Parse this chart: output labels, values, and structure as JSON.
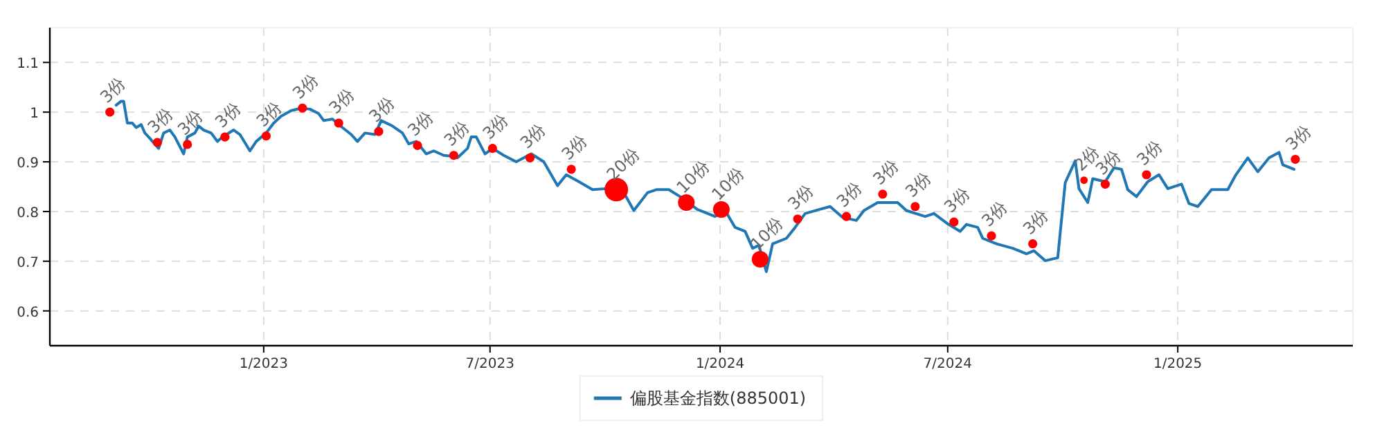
{
  "chart_data": {
    "type": "line",
    "xlim": [
      "2022-07-14",
      "2025-05-21"
    ],
    "ylim": [
      0.53,
      1.17
    ],
    "xticks": [
      {
        "value": "2023-01-01",
        "label": "1/2023"
      },
      {
        "value": "2023-07-01",
        "label": "7/2023"
      },
      {
        "value": "2024-01-01",
        "label": "1/2024"
      },
      {
        "value": "2024-07-01",
        "label": "7/2024"
      },
      {
        "value": "2025-01-01",
        "label": "1/2025"
      }
    ],
    "yticks": [
      0.6,
      0.7,
      0.8,
      0.9,
      1,
      1.1
    ],
    "grid": true,
    "legend": "bottom",
    "series": [
      {
        "name": "偏股基金指数(885001)",
        "color": "#1f77b4",
        "x": [
          "2022-09-05",
          "2022-09-09",
          "2022-09-11",
          "2022-09-14",
          "2022-09-18",
          "2022-09-21",
          "2022-09-25",
          "2022-09-28",
          "2022-10-01",
          "2022-10-09",
          "2022-10-13",
          "2022-10-18",
          "2022-10-22",
          "2022-10-29",
          "2022-11-01",
          "2022-11-07",
          "2022-11-10",
          "2022-11-14",
          "2022-11-20",
          "2022-11-25",
          "2022-11-29",
          "2022-12-08",
          "2022-12-13",
          "2022-12-21",
          "2022-12-26",
          "2023-01-03",
          "2023-01-09",
          "2023-01-15",
          "2023-01-23",
          "2023-01-31",
          "2023-02-07",
          "2023-02-14",
          "2023-02-18",
          "2023-02-25",
          "2023-03-05",
          "2023-03-12",
          "2023-03-17",
          "2023-03-23",
          "2023-03-31",
          "2023-04-05",
          "2023-04-14",
          "2023-04-22",
          "2023-04-27",
          "2023-05-03",
          "2023-05-11",
          "2023-05-17",
          "2023-05-25",
          "2023-06-02",
          "2023-06-05",
          "2023-06-13",
          "2023-06-16",
          "2023-06-20",
          "2023-06-27",
          "2023-07-03",
          "2023-07-12",
          "2023-07-22",
          "2023-08-03",
          "2023-08-13",
          "2023-08-24",
          "2023-08-31",
          "2023-09-10",
          "2023-09-21",
          "2023-10-02",
          "2023-10-16",
          "2023-10-24",
          "2023-11-04",
          "2023-11-11",
          "2023-11-21",
          "2023-11-30",
          "2023-12-14",
          "2023-12-28",
          "2024-01-05",
          "2024-01-13",
          "2024-01-21",
          "2024-01-27",
          "2024-02-01",
          "2024-02-07",
          "2024-02-12",
          "2024-02-23",
          "2024-03-01",
          "2024-03-09",
          "2024-03-20",
          "2024-03-29",
          "2024-04-08",
          "2024-04-19",
          "2024-04-25",
          "2024-05-06",
          "2024-05-22",
          "2024-05-29",
          "2024-06-13",
          "2024-06-20",
          "2024-06-30",
          "2024-07-11",
          "2024-07-16",
          "2024-07-25",
          "2024-07-29",
          "2024-08-09",
          "2024-08-22",
          "2024-09-02",
          "2024-09-08",
          "2024-09-17",
          "2024-09-27",
          "2024-10-03",
          "2024-10-11",
          "2024-10-14",
          "2024-10-21",
          "2024-10-25",
          "2024-11-04",
          "2024-11-11",
          "2024-11-17",
          "2024-11-22",
          "2024-11-29",
          "2024-12-08",
          "2024-12-17",
          "2024-12-24",
          "2025-01-04",
          "2025-01-10",
          "2025-01-17",
          "2025-01-28",
          "2025-02-10",
          "2025-02-16",
          "2025-02-26",
          "2025-03-06",
          "2025-03-15",
          "2025-03-23",
          "2025-03-26",
          "2025-04-04"
        ],
        "values": [
          1.014,
          1.022,
          1.022,
          0.978,
          0.978,
          0.969,
          0.975,
          0.958,
          0.95,
          0.927,
          0.958,
          0.964,
          0.95,
          0.916,
          0.95,
          0.958,
          0.972,
          0.964,
          0.958,
          0.941,
          0.95,
          0.964,
          0.955,
          0.922,
          0.941,
          0.958,
          0.978,
          0.992,
          1.003,
          1.008,
          1.006,
          0.997,
          0.983,
          0.986,
          0.969,
          0.955,
          0.941,
          0.958,
          0.955,
          0.983,
          0.972,
          0.958,
          0.936,
          0.941,
          0.916,
          0.922,
          0.913,
          0.911,
          0.908,
          0.927,
          0.95,
          0.95,
          0.916,
          0.927,
          0.913,
          0.9,
          0.916,
          0.9,
          0.852,
          0.874,
          0.86,
          0.844,
          0.846,
          0.838,
          0.802,
          0.838,
          0.844,
          0.844,
          0.83,
          0.804,
          0.79,
          0.802,
          0.768,
          0.76,
          0.726,
          0.732,
          0.679,
          0.735,
          0.746,
          0.768,
          0.796,
          0.804,
          0.81,
          0.788,
          0.782,
          0.802,
          0.818,
          0.818,
          0.802,
          0.79,
          0.796,
          0.777,
          0.76,
          0.774,
          0.768,
          0.746,
          0.735,
          0.726,
          0.715,
          0.721,
          0.701,
          0.707,
          0.858,
          0.902,
          0.846,
          0.818,
          0.866,
          0.86,
          0.888,
          0.885,
          0.844,
          0.83,
          0.86,
          0.874,
          0.846,
          0.855,
          0.816,
          0.81,
          0.844,
          0.844,
          0.872,
          0.908,
          0.88,
          0.908,
          0.919,
          0.894,
          0.885
        ]
      },
      {
        "type": "bubble",
        "color": "#ff0000",
        "x": [
          "2022-08-31",
          "2022-10-08",
          "2022-11-01",
          "2022-12-01",
          "2023-01-03",
          "2023-02-01",
          "2023-03-02",
          "2023-04-03",
          "2023-05-04",
          "2023-06-02",
          "2023-07-03",
          "2023-08-02",
          "2023-09-04",
          "2023-10-10",
          "2023-12-05",
          "2024-01-02",
          "2024-02-02",
          "2024-03-03",
          "2024-04-11",
          "2024-05-10",
          "2024-06-05",
          "2024-07-06",
          "2024-08-05",
          "2024-09-07",
          "2024-10-18",
          "2024-11-04",
          "2024-12-07",
          "2025-04-05"
        ],
        "values": [
          1.0,
          0.939,
          0.935,
          0.95,
          0.952,
          1.008,
          0.978,
          0.961,
          0.933,
          0.913,
          0.927,
          0.908,
          0.885,
          0.844,
          0.818,
          0.804,
          0.704,
          0.785,
          0.79,
          0.835,
          0.81,
          0.779,
          0.751,
          0.735,
          0.863,
          0.855,
          0.874,
          0.905
        ],
        "sizes": [
          0.15,
          0.15,
          0.15,
          0.15,
          0.15,
          0.15,
          0.15,
          0.15,
          0.15,
          0.15,
          0.15,
          0.15,
          0.15,
          1,
          0.5,
          0.5,
          0.5,
          0.15,
          0.15,
          0.15,
          0.15,
          0.15,
          0.15,
          0.15,
          0.1,
          0.15,
          0.15,
          0.15
        ]
      }
    ],
    "annotations": [
      {
        "text": "3份",
        "x": "2022-08-31",
        "y": 1.0
      },
      {
        "text": "3份",
        "x": "2022-10-08",
        "y": 0.939
      },
      {
        "text": "3份",
        "x": "2022-11-01",
        "y": 0.935
      },
      {
        "text": "3份",
        "x": "2022-12-01",
        "y": 0.95
      },
      {
        "text": "3份",
        "x": "2023-01-03",
        "y": 0.952
      },
      {
        "text": "3份",
        "x": "2023-02-01",
        "y": 1.008
      },
      {
        "text": "3份",
        "x": "2023-03-02",
        "y": 0.978
      },
      {
        "text": "3份",
        "x": "2023-04-03",
        "y": 0.961
      },
      {
        "text": "3份",
        "x": "2023-05-04",
        "y": 0.933
      },
      {
        "text": "3份",
        "x": "2023-06-02",
        "y": 0.913
      },
      {
        "text": "3份",
        "x": "2023-07-03",
        "y": 0.927
      },
      {
        "text": "3份",
        "x": "2023-08-02",
        "y": 0.908
      },
      {
        "text": "3份",
        "x": "2023-09-04",
        "y": 0.885
      },
      {
        "text": "20份",
        "x": "2023-10-10",
        "y": 0.844
      },
      {
        "text": "10份",
        "x": "2023-12-05",
        "y": 0.818
      },
      {
        "text": "10份",
        "x": "2024-01-02",
        "y": 0.804
      },
      {
        "text": "10份",
        "x": "2024-02-02",
        "y": 0.704
      },
      {
        "text": "3份",
        "x": "2024-03-03",
        "y": 0.785
      },
      {
        "text": "3份",
        "x": "2024-04-11",
        "y": 0.79
      },
      {
        "text": "3份",
        "x": "2024-05-10",
        "y": 0.835
      },
      {
        "text": "3份",
        "x": "2024-06-05",
        "y": 0.81
      },
      {
        "text": "3份",
        "x": "2024-07-06",
        "y": 0.779
      },
      {
        "text": "3份",
        "x": "2024-08-05",
        "y": 0.751
      },
      {
        "text": "3份",
        "x": "2024-09-07",
        "y": 0.735
      },
      {
        "text": "2份",
        "x": "2024-10-18",
        "y": 0.863
      },
      {
        "text": "3份",
        "x": "2024-11-04",
        "y": 0.855
      },
      {
        "text": "3份",
        "x": "2024-12-07",
        "y": 0.874
      },
      {
        "text": "3份",
        "x": "2025-04-05",
        "y": 0.905
      }
    ]
  }
}
